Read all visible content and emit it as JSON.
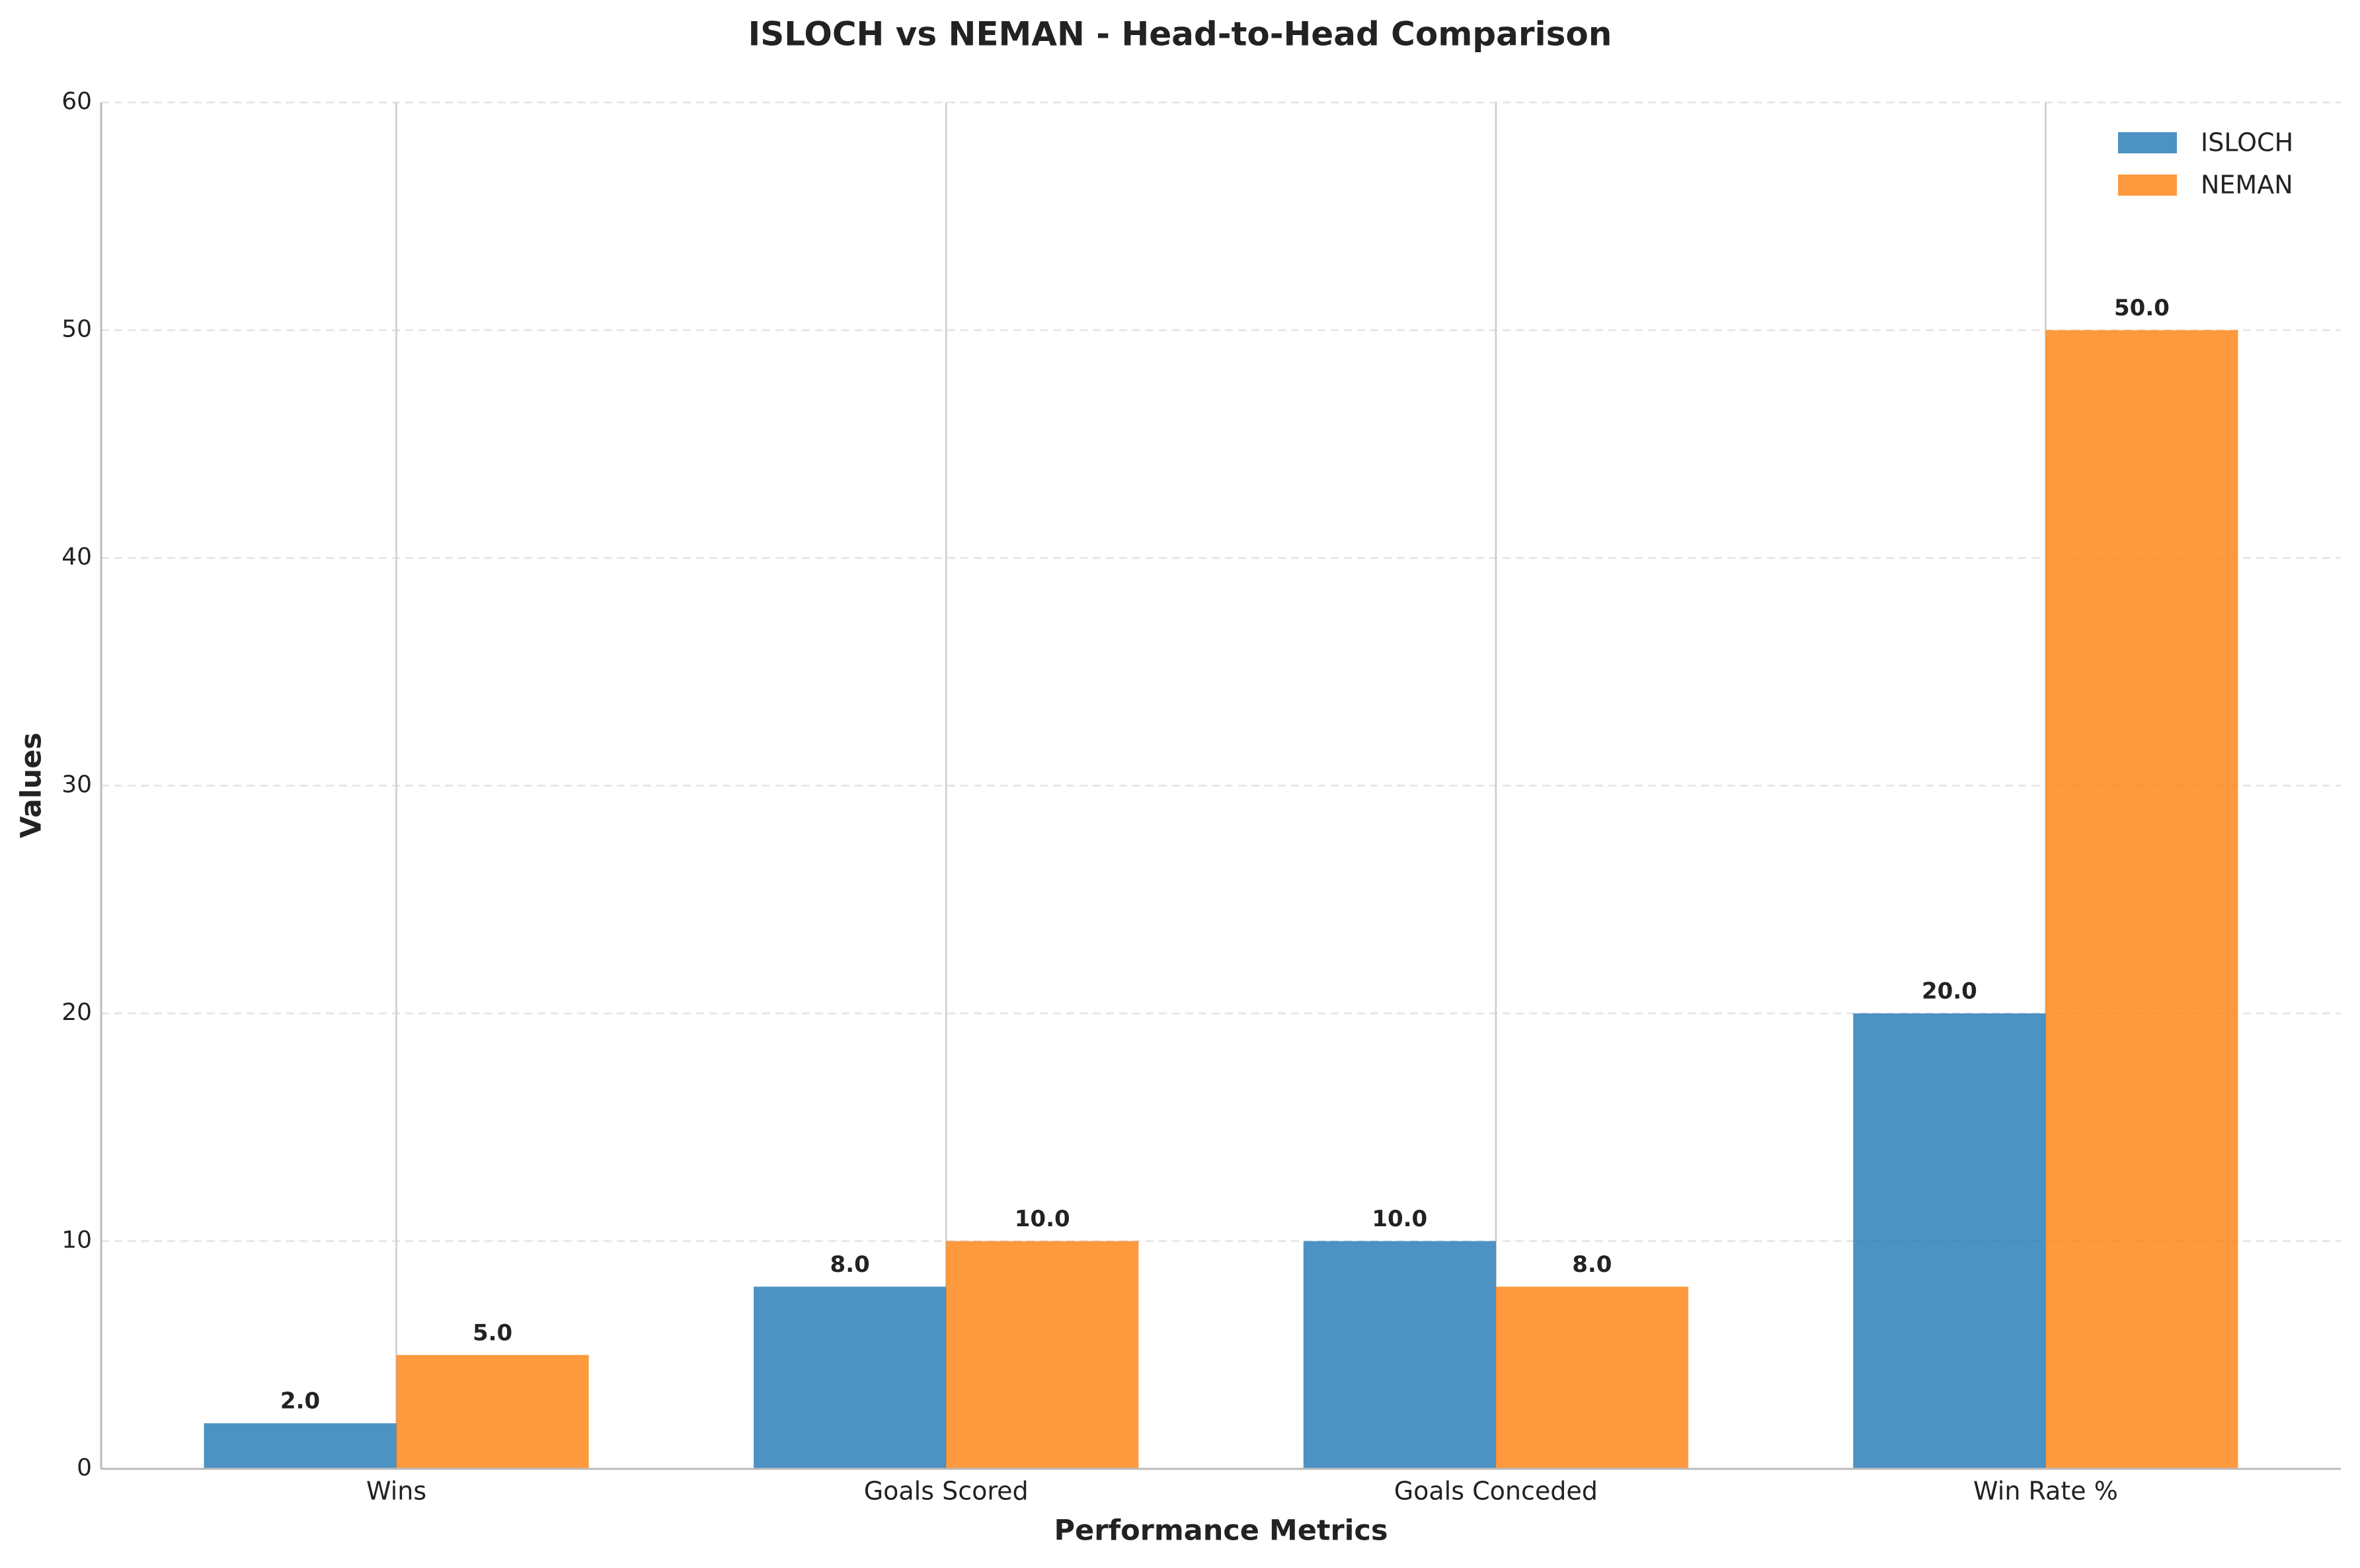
{
  "chart_data": {
    "type": "bar",
    "title": "ISLOCH vs NEMAN - Head-to-Head Comparison",
    "x_label": "Performance Metrics",
    "y_label": "Values",
    "categories": [
      "Wins",
      "Goals Scored",
      "Goals Conceded",
      "Win Rate %"
    ],
    "series": [
      {
        "name": "ISLOCH",
        "color": "#1f77b4",
        "values": [
          2,
          8,
          10,
          20
        ],
        "value_labels": [
          "2.0",
          "8.0",
          "10.0",
          "20.0"
        ]
      },
      {
        "name": "NEMAN",
        "color": "#ff7f0e",
        "values": [
          5,
          10,
          8,
          50
        ],
        "value_labels": [
          "5.0",
          "10.0",
          "8.0",
          "50.0"
        ]
      }
    ],
    "ylim": [
      0,
      60
    ],
    "yticks": [
      0,
      10,
      20,
      30,
      40,
      50,
      60
    ],
    "grid": true,
    "legend": "upper right"
  }
}
